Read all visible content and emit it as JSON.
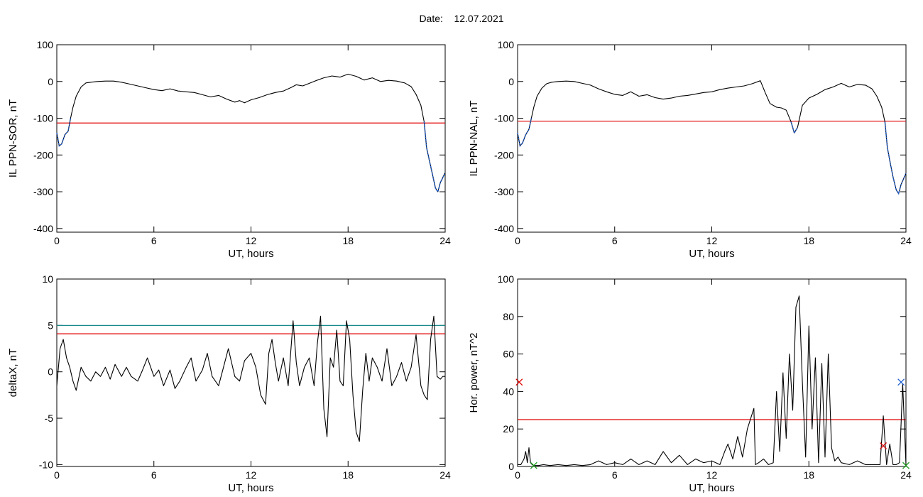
{
  "header": {
    "date_label": "Date:",
    "date_value": "12.07.2021"
  },
  "chart_data": [
    {
      "type": "line",
      "xlabel": "UT, hours",
      "ylabel": "IL PPN-SOR, nT",
      "xlim": [
        0,
        24
      ],
      "ylim": [
        -410,
        100
      ],
      "xticks": [
        0,
        6,
        12,
        18,
        24
      ],
      "yticks": [
        -400,
        -300,
        -200,
        -100,
        0,
        100
      ],
      "threshold_lines": [
        {
          "y": -113,
          "color": "#e00000"
        }
      ],
      "series": [
        {
          "color": "#000000",
          "x": [
            0,
            0.15,
            0.3,
            0.5,
            0.7,
            0.85,
            1.0,
            1.2,
            1.5,
            1.8,
            2.1,
            2.5,
            3.0,
            3.5,
            4.0,
            4.5,
            5.0,
            5.5,
            6.0,
            6.5,
            7.0,
            7.5,
            8.0,
            8.5,
            9.0,
            9.5,
            10.0,
            10.5,
            11.0,
            11.3,
            11.6,
            12.0,
            12.5,
            13.0,
            13.5,
            14.0,
            14.5,
            14.8,
            15.2,
            15.6,
            16.0,
            16.5,
            17.0,
            17.5,
            18.0,
            18.5,
            19.0,
            19.5,
            20.0,
            20.5,
            21.0,
            21.5,
            21.9,
            22.2,
            22.5,
            22.7,
            22.85,
            23.0,
            23.2,
            23.4,
            23.55,
            23.7,
            23.85,
            24.0
          ],
          "y": [
            -140,
            -175,
            -170,
            -145,
            -135,
            -100,
            -70,
            -40,
            -15,
            -4,
            -2,
            0,
            1,
            1,
            -2,
            -7,
            -12,
            -17,
            -22,
            -25,
            -20,
            -26,
            -28,
            -30,
            -36,
            -42,
            -38,
            -48,
            -56,
            -52,
            -58,
            -50,
            -44,
            -36,
            -30,
            -26,
            -16,
            -9,
            -12,
            -5,
            2,
            10,
            15,
            12,
            20,
            14,
            4,
            10,
            0,
            3,
            1,
            -4,
            -14,
            -35,
            -65,
            -110,
            -180,
            -210,
            -250,
            -290,
            -300,
            -275,
            -262,
            -248
          ]
        }
      ],
      "highlight_segments": [
        {
          "x_from": 0,
          "x_to": 0.85,
          "color": "#1f5fd0"
        },
        {
          "x_from": 22.7,
          "x_to": 24,
          "color": "#1f5fd0"
        }
      ]
    },
    {
      "type": "line",
      "xlabel": "UT, hours",
      "ylabel": "IL PPN-NAL, nT",
      "xlim": [
        0,
        24
      ],
      "ylim": [
        -410,
        100
      ],
      "xticks": [
        0,
        6,
        12,
        18,
        24
      ],
      "yticks": [
        -400,
        -300,
        -200,
        -100,
        0,
        100
      ],
      "threshold_lines": [
        {
          "y": -108,
          "color": "#e00000"
        }
      ],
      "series": [
        {
          "color": "#000000",
          "x": [
            0,
            0.15,
            0.3,
            0.5,
            0.7,
            0.85,
            1.0,
            1.2,
            1.5,
            1.8,
            2.1,
            2.5,
            3.0,
            3.5,
            4.0,
            4.5,
            5.0,
            5.5,
            6.0,
            6.5,
            7.0,
            7.5,
            8.0,
            8.5,
            9.0,
            9.5,
            10.0,
            10.5,
            11.0,
            11.5,
            12.0,
            12.5,
            13.0,
            13.5,
            14.0,
            14.5,
            15.0,
            15.3,
            15.6,
            16.0,
            16.3,
            16.6,
            16.9,
            17.1,
            17.3,
            17.6,
            18.0,
            18.5,
            19.0,
            19.5,
            20.0,
            20.5,
            21.0,
            21.5,
            21.9,
            22.2,
            22.5,
            22.7,
            22.85,
            23.0,
            23.2,
            23.4,
            23.55,
            23.7,
            23.85,
            24.0
          ],
          "y": [
            -140,
            -175,
            -168,
            -145,
            -130,
            -100,
            -70,
            -40,
            -18,
            -6,
            -2,
            0,
            1,
            0,
            -5,
            -10,
            -20,
            -28,
            -35,
            -38,
            -28,
            -40,
            -36,
            -44,
            -48,
            -45,
            -40,
            -38,
            -34,
            -30,
            -28,
            -22,
            -18,
            -15,
            -12,
            -6,
            2,
            -30,
            -60,
            -70,
            -72,
            -78,
            -110,
            -140,
            -125,
            -65,
            -45,
            -35,
            -22,
            -15,
            -5,
            -15,
            -8,
            -10,
            -20,
            -40,
            -70,
            -110,
            -180,
            -215,
            -260,
            -295,
            -305,
            -280,
            -265,
            -250
          ]
        }
      ],
      "highlight_segments": [
        {
          "x_from": 0,
          "x_to": 0.85,
          "color": "#1f5fd0"
        },
        {
          "x_from": 16.8,
          "x_to": 17.3,
          "color": "#1f5fd0"
        },
        {
          "x_from": 22.7,
          "x_to": 24,
          "color": "#1f5fd0"
        }
      ]
    },
    {
      "type": "line",
      "xlabel": "UT, hours",
      "ylabel": "deltaX, nT",
      "xlim": [
        0,
        24
      ],
      "ylim": [
        -10.2,
        10
      ],
      "xticks": [
        0,
        6,
        12,
        18,
        24
      ],
      "yticks": [
        -10,
        -5,
        0,
        5,
        10
      ],
      "threshold_lines": [
        {
          "y": 5.0,
          "color": "#1a8a8a"
        },
        {
          "y": 4.1,
          "color": "#e00000"
        }
      ],
      "series": [
        {
          "color": "#000000",
          "x": [
            0,
            0.2,
            0.4,
            0.6,
            0.8,
            1.0,
            1.2,
            1.5,
            1.8,
            2.1,
            2.4,
            2.7,
            3.0,
            3.3,
            3.6,
            4.0,
            4.3,
            4.6,
            5.0,
            5.3,
            5.6,
            6.0,
            6.3,
            6.6,
            7.0,
            7.3,
            7.6,
            8.0,
            8.3,
            8.6,
            9.0,
            9.3,
            9.6,
            10.0,
            10.3,
            10.6,
            11.0,
            11.3,
            11.6,
            12.0,
            12.3,
            12.6,
            12.9,
            13.1,
            13.3,
            13.5,
            13.7,
            14.0,
            14.3,
            14.6,
            14.8,
            15.0,
            15.3,
            15.6,
            15.9,
            16.1,
            16.3,
            16.5,
            16.7,
            16.9,
            17.1,
            17.3,
            17.5,
            17.7,
            17.9,
            18.1,
            18.3,
            18.5,
            18.7,
            18.9,
            19.1,
            19.3,
            19.5,
            19.8,
            20.1,
            20.4,
            20.7,
            21.0,
            21.3,
            21.6,
            21.9,
            22.2,
            22.5,
            22.7,
            22.9,
            23.1,
            23.3,
            23.5,
            23.7,
            23.85,
            24.0
          ],
          "y": [
            -1.5,
            2.5,
            3.5,
            1.5,
            0.5,
            -1.0,
            -2.0,
            0.5,
            -0.5,
            -1.0,
            0.0,
            -0.5,
            0.5,
            -0.8,
            0.8,
            -0.5,
            0.5,
            -0.5,
            -1.0,
            0.2,
            1.5,
            -0.5,
            0.2,
            -1.5,
            0.2,
            -1.8,
            -1.0,
            0.5,
            1.5,
            -1.0,
            0.2,
            2.0,
            -0.5,
            -1.5,
            0.5,
            2.5,
            -0.5,
            -1.0,
            1.2,
            2.0,
            0.5,
            -2.5,
            -3.5,
            2.0,
            3.5,
            1.0,
            -1.0,
            1.5,
            -1.5,
            5.5,
            1.0,
            -1.5,
            0.5,
            1.5,
            -1.5,
            3.0,
            6.0,
            -4.0,
            -7.0,
            1.5,
            0.5,
            4.5,
            -1.0,
            -1.5,
            5.5,
            3.5,
            -2.5,
            -6.5,
            -7.5,
            -2.0,
            2.0,
            -1.0,
            1.5,
            0.5,
            -1.0,
            2.5,
            -1.5,
            -0.5,
            1.0,
            -1.0,
            0.5,
            4.0,
            -1.5,
            -2.5,
            -3.0,
            3.5,
            6.0,
            -0.5,
            -0.8,
            -0.5,
            -0.5
          ]
        }
      ]
    },
    {
      "type": "line",
      "xlabel": "UT, hours",
      "ylabel": "Hor. power, nT^2",
      "xlim": [
        0,
        24
      ],
      "ylim": [
        0,
        100
      ],
      "xticks": [
        0,
        6,
        12,
        18,
        24
      ],
      "yticks": [
        0,
        20,
        40,
        60,
        80,
        100
      ],
      "threshold_lines": [
        {
          "y": 25,
          "color": "#e00000"
        }
      ],
      "series": [
        {
          "color": "#000000",
          "x": [
            0,
            0.2,
            0.4,
            0.5,
            0.6,
            0.7,
            0.8,
            0.9,
            1.0,
            1.3,
            1.6,
            2.0,
            2.5,
            3.0,
            3.5,
            4.0,
            4.5,
            5.0,
            5.5,
            6.0,
            6.5,
            7.0,
            7.5,
            8.0,
            8.5,
            9.0,
            9.5,
            10.0,
            10.5,
            11.0,
            11.5,
            12.0,
            12.5,
            12.8,
            13.0,
            13.3,
            13.6,
            13.9,
            14.2,
            14.6,
            14.7,
            14.9,
            15.2,
            15.5,
            15.8,
            16.0,
            16.2,
            16.4,
            16.6,
            16.8,
            17.0,
            17.2,
            17.4,
            17.6,
            17.8,
            18.0,
            18.2,
            18.4,
            18.6,
            18.8,
            19.0,
            19.2,
            19.4,
            19.6,
            19.8,
            20.0,
            20.5,
            21.0,
            21.5,
            22.0,
            22.2,
            22.4,
            22.6,
            22.8,
            23.0,
            23.2,
            23.4,
            23.6,
            23.8,
            24.0
          ],
          "y": [
            1,
            1,
            4,
            8,
            2,
            10,
            2,
            1,
            0.5,
            0.5,
            1,
            0.5,
            1,
            0.5,
            1,
            0.5,
            1,
            3,
            1,
            2,
            1,
            4,
            1,
            3,
            1,
            8,
            2,
            6,
            1,
            4,
            2,
            3,
            1,
            8,
            12,
            4,
            16,
            5,
            20,
            31,
            1,
            2,
            4,
            1,
            2,
            40,
            8,
            50,
            15,
            60,
            30,
            85,
            91,
            45,
            5,
            75,
            20,
            58,
            2,
            55,
            5,
            60,
            10,
            3,
            5,
            2,
            1,
            3,
            1,
            1,
            1,
            1,
            27,
            1,
            12,
            1,
            1,
            2,
            44,
            1
          ]
        }
      ],
      "markers": [
        {
          "x": 0.1,
          "y": 45,
          "symbol": "x",
          "color": "#e00000"
        },
        {
          "x": 1.0,
          "y": 0.5,
          "symbol": "x",
          "color": "#1a9a1a"
        },
        {
          "x": 22.6,
          "y": 11,
          "symbol": "x",
          "color": "#e00000"
        },
        {
          "x": 23.7,
          "y": 45,
          "symbol": "x",
          "color": "#1f5fd0"
        },
        {
          "x": 24.0,
          "y": 0.5,
          "symbol": "x",
          "color": "#1a9a1a"
        }
      ]
    }
  ]
}
